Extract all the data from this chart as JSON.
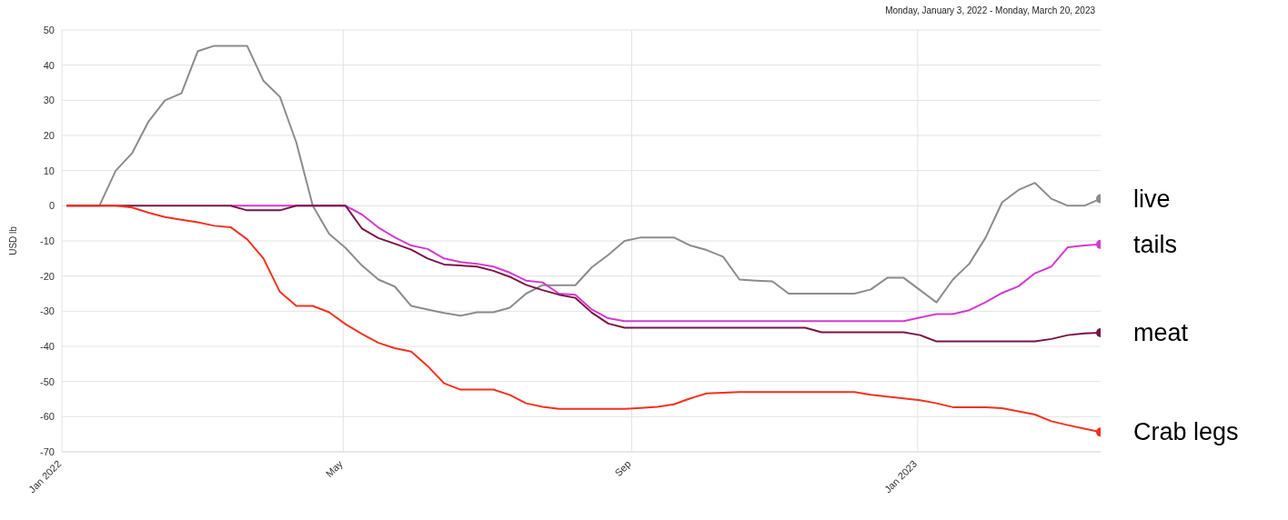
{
  "chart_data": {
    "type": "line",
    "subtitle": "Monday, January 3, 2022 - Monday, March 20, 2023",
    "ylabel": "USD lb",
    "x": [
      "2022-01-03",
      "2022-01-10",
      "2022-01-17",
      "2022-01-24",
      "2022-01-31",
      "2022-02-07",
      "2022-02-14",
      "2022-02-21",
      "2022-02-28",
      "2022-03-07",
      "2022-03-14",
      "2022-03-21",
      "2022-03-28",
      "2022-04-04",
      "2022-04-11",
      "2022-04-18",
      "2022-04-25",
      "2022-05-02",
      "2022-05-09",
      "2022-05-16",
      "2022-05-23",
      "2022-05-30",
      "2022-06-06",
      "2022-06-13",
      "2022-06-20",
      "2022-06-27",
      "2022-07-04",
      "2022-07-11",
      "2022-07-18",
      "2022-07-25",
      "2022-08-01",
      "2022-08-08",
      "2022-08-15",
      "2022-08-22",
      "2022-08-29",
      "2022-09-05",
      "2022-09-12",
      "2022-09-19",
      "2022-09-26",
      "2022-10-03",
      "2022-10-10",
      "2022-10-17",
      "2022-10-24",
      "2022-10-31",
      "2022-11-07",
      "2022-11-14",
      "2022-11-21",
      "2022-11-28",
      "2022-12-05",
      "2022-12-12",
      "2022-12-19",
      "2022-12-26",
      "2023-01-02",
      "2023-01-09",
      "2023-01-16",
      "2023-01-23",
      "2023-01-30",
      "2023-02-06",
      "2023-02-13",
      "2023-02-20",
      "2023-02-27",
      "2023-03-06",
      "2023-03-13",
      "2023-03-20"
    ],
    "series": [
      {
        "name": "live",
        "color": "#8c8c8c",
        "values": [
          0,
          0,
          0,
          10,
          15,
          24,
          30,
          32,
          44,
          45.5,
          45.5,
          45.5,
          35.5,
          31,
          18,
          0,
          -8,
          -12,
          -17,
          -21,
          -23,
          -28.5,
          -29.5,
          -30.5,
          -31.3,
          -30.3,
          -30.3,
          -29,
          -25,
          -22.6,
          -22.6,
          -22.6,
          -17.5,
          -14,
          -10,
          -9,
          -9,
          -9,
          -11.3,
          -12.6,
          -14.5,
          -21,
          -21.3,
          -21.5,
          -25,
          -25,
          -25,
          -25,
          -25,
          -23.8,
          -20.5,
          -20.5,
          -24,
          -27.5,
          -21,
          -16.5,
          -9,
          1,
          4.5,
          6.5,
          2,
          0,
          0,
          2
        ]
      },
      {
        "name": "tails",
        "color": "#d23ad0",
        "values": [
          null,
          null,
          null,
          null,
          null,
          null,
          null,
          null,
          null,
          null,
          0,
          0,
          0,
          0,
          0,
          0,
          0,
          0,
          -2.5,
          -6.2,
          -9,
          -11.3,
          -12.3,
          -15,
          -16,
          -16.5,
          -17.3,
          -19,
          -21.3,
          -21.8,
          -25,
          -25.3,
          -29.5,
          -32,
          -32.8,
          -32.8,
          -32.8,
          -32.8,
          -32.8,
          -32.8,
          -32.8,
          -32.8,
          -32.8,
          -32.8,
          -32.8,
          -32.8,
          -32.8,
          -32.8,
          -32.8,
          -32.8,
          -32.8,
          -32.8,
          -31.8,
          -30.8,
          -30.8,
          -29.7,
          -27.4,
          -24.8,
          -22.9,
          -19.2,
          -17.3,
          -11.8,
          -11.3,
          -11
        ]
      },
      {
        "name": "meat",
        "color": "#7a1446",
        "values": [
          0,
          0,
          0,
          0,
          0,
          0,
          0,
          0,
          0,
          0,
          0,
          -1.3,
          -1.3,
          -1.3,
          0,
          0,
          0,
          0,
          -6.5,
          -9.2,
          -10.8,
          -12.5,
          -15,
          -16.7,
          -17,
          -17.3,
          -18.5,
          -20.2,
          -22.5,
          -24,
          -25.3,
          -26.2,
          -30.4,
          -33.5,
          -34.7,
          -34.7,
          -34.7,
          -34.7,
          -34.7,
          -34.7,
          -34.7,
          -34.7,
          -34.7,
          -34.7,
          -34.7,
          -34.7,
          -36,
          -36,
          -36,
          -36,
          -36,
          -36,
          -36.8,
          -38.6,
          -38.6,
          -38.6,
          -38.6,
          -38.6,
          -38.6,
          -38.6,
          -37.9,
          -36.8,
          -36.3,
          -36.1
        ]
      },
      {
        "name": "Crab legs",
        "color": "#f2321f",
        "values": [
          0,
          0,
          0,
          0,
          -0.5,
          -2,
          -3.2,
          -4,
          -4.7,
          -5.7,
          -6.1,
          -9.5,
          -15,
          -24.5,
          -28.5,
          -28.5,
          -30.3,
          -33.7,
          -36.5,
          -39,
          -40.5,
          -41.5,
          -45.6,
          -50.5,
          -52.3,
          -52.3,
          -52.3,
          -53.8,
          -56.2,
          -57.2,
          -57.8,
          -57.8,
          -57.8,
          -57.8,
          -57.8,
          -57.5,
          -57.2,
          -56.5,
          -54.8,
          -53.4,
          -53.2,
          -53,
          -53,
          -53,
          -53,
          -53,
          -53,
          -53,
          -53,
          -53.8,
          -54.3,
          -54.8,
          -55.3,
          -56.2,
          -57.3,
          -57.3,
          -57.3,
          -57.6,
          -58.5,
          -59.4,
          -61.3,
          -62.4,
          -63.4,
          -64.4
        ]
      }
    ],
    "xlim": [
      "2022-01-01",
      "2023-03-20"
    ],
    "xticks": [
      {
        "value": "2022-01-01",
        "label": "Jan 2022"
      },
      {
        "value": "2022-05-01",
        "label": "May"
      },
      {
        "value": "2022-09-01",
        "label": "Sep"
      },
      {
        "value": "2023-01-01",
        "label": "Jan 2023"
      }
    ],
    "ylim": [
      -70,
      50
    ],
    "yticks": [
      -70,
      -60,
      -50,
      -40,
      -30,
      -20,
      -10,
      0,
      10,
      20,
      30,
      40,
      50
    ],
    "grid": true,
    "line_style": "solid"
  }
}
